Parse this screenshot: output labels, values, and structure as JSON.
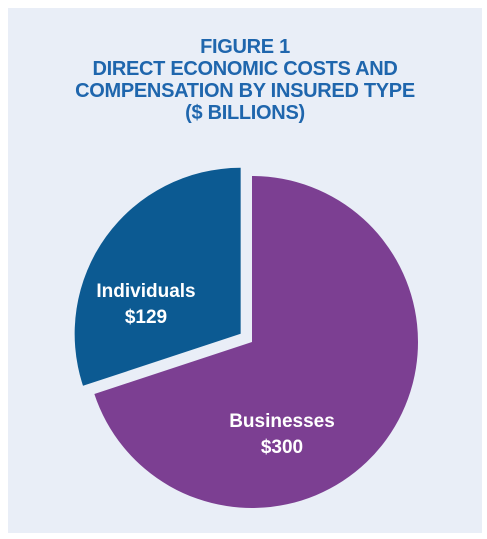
{
  "figure": {
    "title_lines": [
      "FIGURE 1",
      "DIRECT ECONOMIC COSTS AND",
      "COMPENSATION BY INSURED TYPE",
      "($ BILLIONS)"
    ]
  },
  "chart_data": {
    "type": "pie",
    "title": "FIGURE 1 DIRECT ECONOMIC COSTS AND COMPENSATION BY INSURED TYPE ($ BILLIONS)",
    "unit": "$ BILLIONS",
    "slices": [
      {
        "label": "Individuals",
        "value": 129,
        "value_label": "$129",
        "color": "#0c5a92",
        "exploded": true
      },
      {
        "label": "Businesses",
        "value": 300,
        "value_label": "$300",
        "color": "#7c3f92",
        "exploded": false
      }
    ],
    "background": "#e9eef7",
    "title_color": "#1f66ad"
  }
}
